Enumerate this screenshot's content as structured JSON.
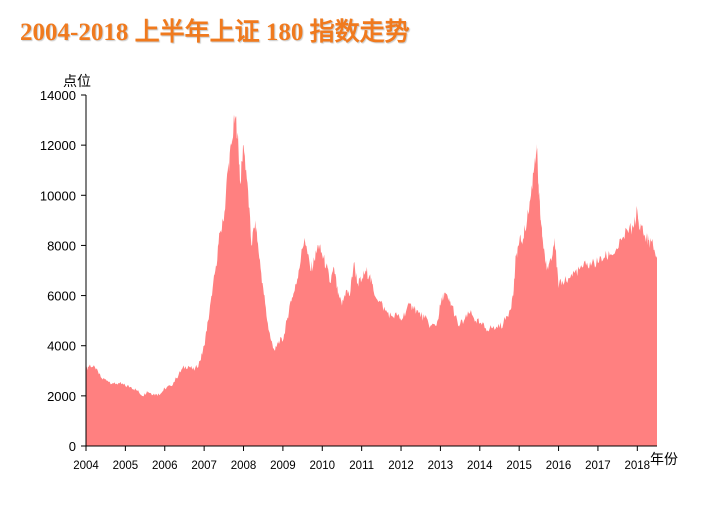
{
  "title": "2004-2018 上半年上证 180 指数走势",
  "colors": {
    "title": "#f07a1e",
    "area": "#ff8080",
    "axis": "#000000"
  },
  "chart_data": {
    "type": "area",
    "title": "2004-2018 上半年上证 180 指数走势",
    "ylabel": "点位",
    "xlabel": "年份",
    "ylim": [
      0,
      14000
    ],
    "yticks": [
      0,
      2000,
      4000,
      6000,
      8000,
      10000,
      12000,
      14000
    ],
    "xlim": [
      2004.0,
      2018.5
    ],
    "xticks": [
      "2004",
      "2005",
      "2006",
      "2007",
      "2008",
      "2009",
      "2010",
      "2011",
      "2012",
      "2013",
      "2014",
      "2015",
      "2016",
      "2017",
      "2018"
    ],
    "grid": false,
    "series": [
      {
        "x": [
          2004.0,
          2004.1,
          2004.25,
          2004.4,
          2004.55,
          2004.7,
          2004.85,
          2005.0,
          2005.15,
          2005.3,
          2005.45,
          2005.55,
          2005.65,
          2005.8,
          2005.9,
          2006.0,
          2006.15,
          2006.3,
          2006.45,
          2006.6,
          2006.75,
          2006.9,
          2007.0,
          2007.1,
          2007.2,
          2007.3,
          2007.4,
          2007.5,
          2007.6,
          2007.7,
          2007.78,
          2007.85,
          2007.92,
          2008.0,
          2008.1,
          2008.2,
          2008.3,
          2008.4,
          2008.5,
          2008.6,
          2008.7,
          2008.8,
          2008.9,
          2009.0,
          2009.1,
          2009.2,
          2009.3,
          2009.4,
          2009.55,
          2009.7,
          2009.8,
          2009.9,
          2010.0,
          2010.1,
          2010.2,
          2010.3,
          2010.4,
          2010.5,
          2010.6,
          2010.7,
          2010.8,
          2010.9,
          2011.0,
          2011.1,
          2011.2,
          2011.3,
          2011.45,
          2011.6,
          2011.75,
          2011.9,
          2012.0,
          2012.15,
          2012.3,
          2012.45,
          2012.6,
          2012.75,
          2012.9,
          2013.0,
          2013.1,
          2013.2,
          2013.3,
          2013.45,
          2013.6,
          2013.75,
          2013.9,
          2014.0,
          2014.15,
          2014.3,
          2014.45,
          2014.6,
          2014.75,
          2014.85,
          2014.92,
          2015.0,
          2015.1,
          2015.2,
          2015.3,
          2015.4,
          2015.45,
          2015.5,
          2015.55,
          2015.6,
          2015.7,
          2015.8,
          2015.9,
          2016.0,
          2016.1,
          2016.25,
          2016.4,
          2016.55,
          2016.7,
          2016.85,
          2017.0,
          2017.15,
          2017.3,
          2017.45,
          2017.6,
          2017.75,
          2017.9,
          2018.0,
          2018.05,
          2018.1,
          2018.2,
          2018.3,
          2018.4,
          2018.5
        ],
        "values": [
          3050,
          3250,
          3050,
          2700,
          2600,
          2500,
          2500,
          2400,
          2350,
          2200,
          2000,
          2200,
          2100,
          2050,
          2100,
          2300,
          2400,
          2700,
          3100,
          3200,
          3000,
          3400,
          4000,
          5000,
          6000,
          7200,
          8500,
          9000,
          11000,
          12000,
          13200,
          12500,
          10500,
          12000,
          10500,
          8000,
          9000,
          7500,
          6300,
          5000,
          4200,
          3800,
          4200,
          4200,
          5000,
          5800,
          6200,
          7000,
          8300,
          7000,
          7400,
          8000,
          7600,
          7200,
          6500,
          7100,
          6000,
          5600,
          6200,
          6000,
          7300,
          6500,
          6600,
          7000,
          6800,
          6200,
          5800,
          5400,
          5200,
          5200,
          5000,
          5500,
          5600,
          5300,
          5100,
          4800,
          4800,
          5600,
          6100,
          5800,
          5600,
          4800,
          5000,
          5300,
          5000,
          4900,
          4700,
          4700,
          4700,
          4900,
          5400,
          6000,
          7600,
          8100,
          8300,
          9000,
          10000,
          11500,
          11800,
          10000,
          9000,
          8200,
          7000,
          7500,
          8300,
          6300,
          6600,
          6700,
          6900,
          7100,
          7200,
          7300,
          7300,
          7500,
          7600,
          7800,
          8200,
          8600,
          8700,
          9400,
          8600,
          8800,
          8300,
          8200,
          8000,
          7500
        ]
      }
    ]
  }
}
